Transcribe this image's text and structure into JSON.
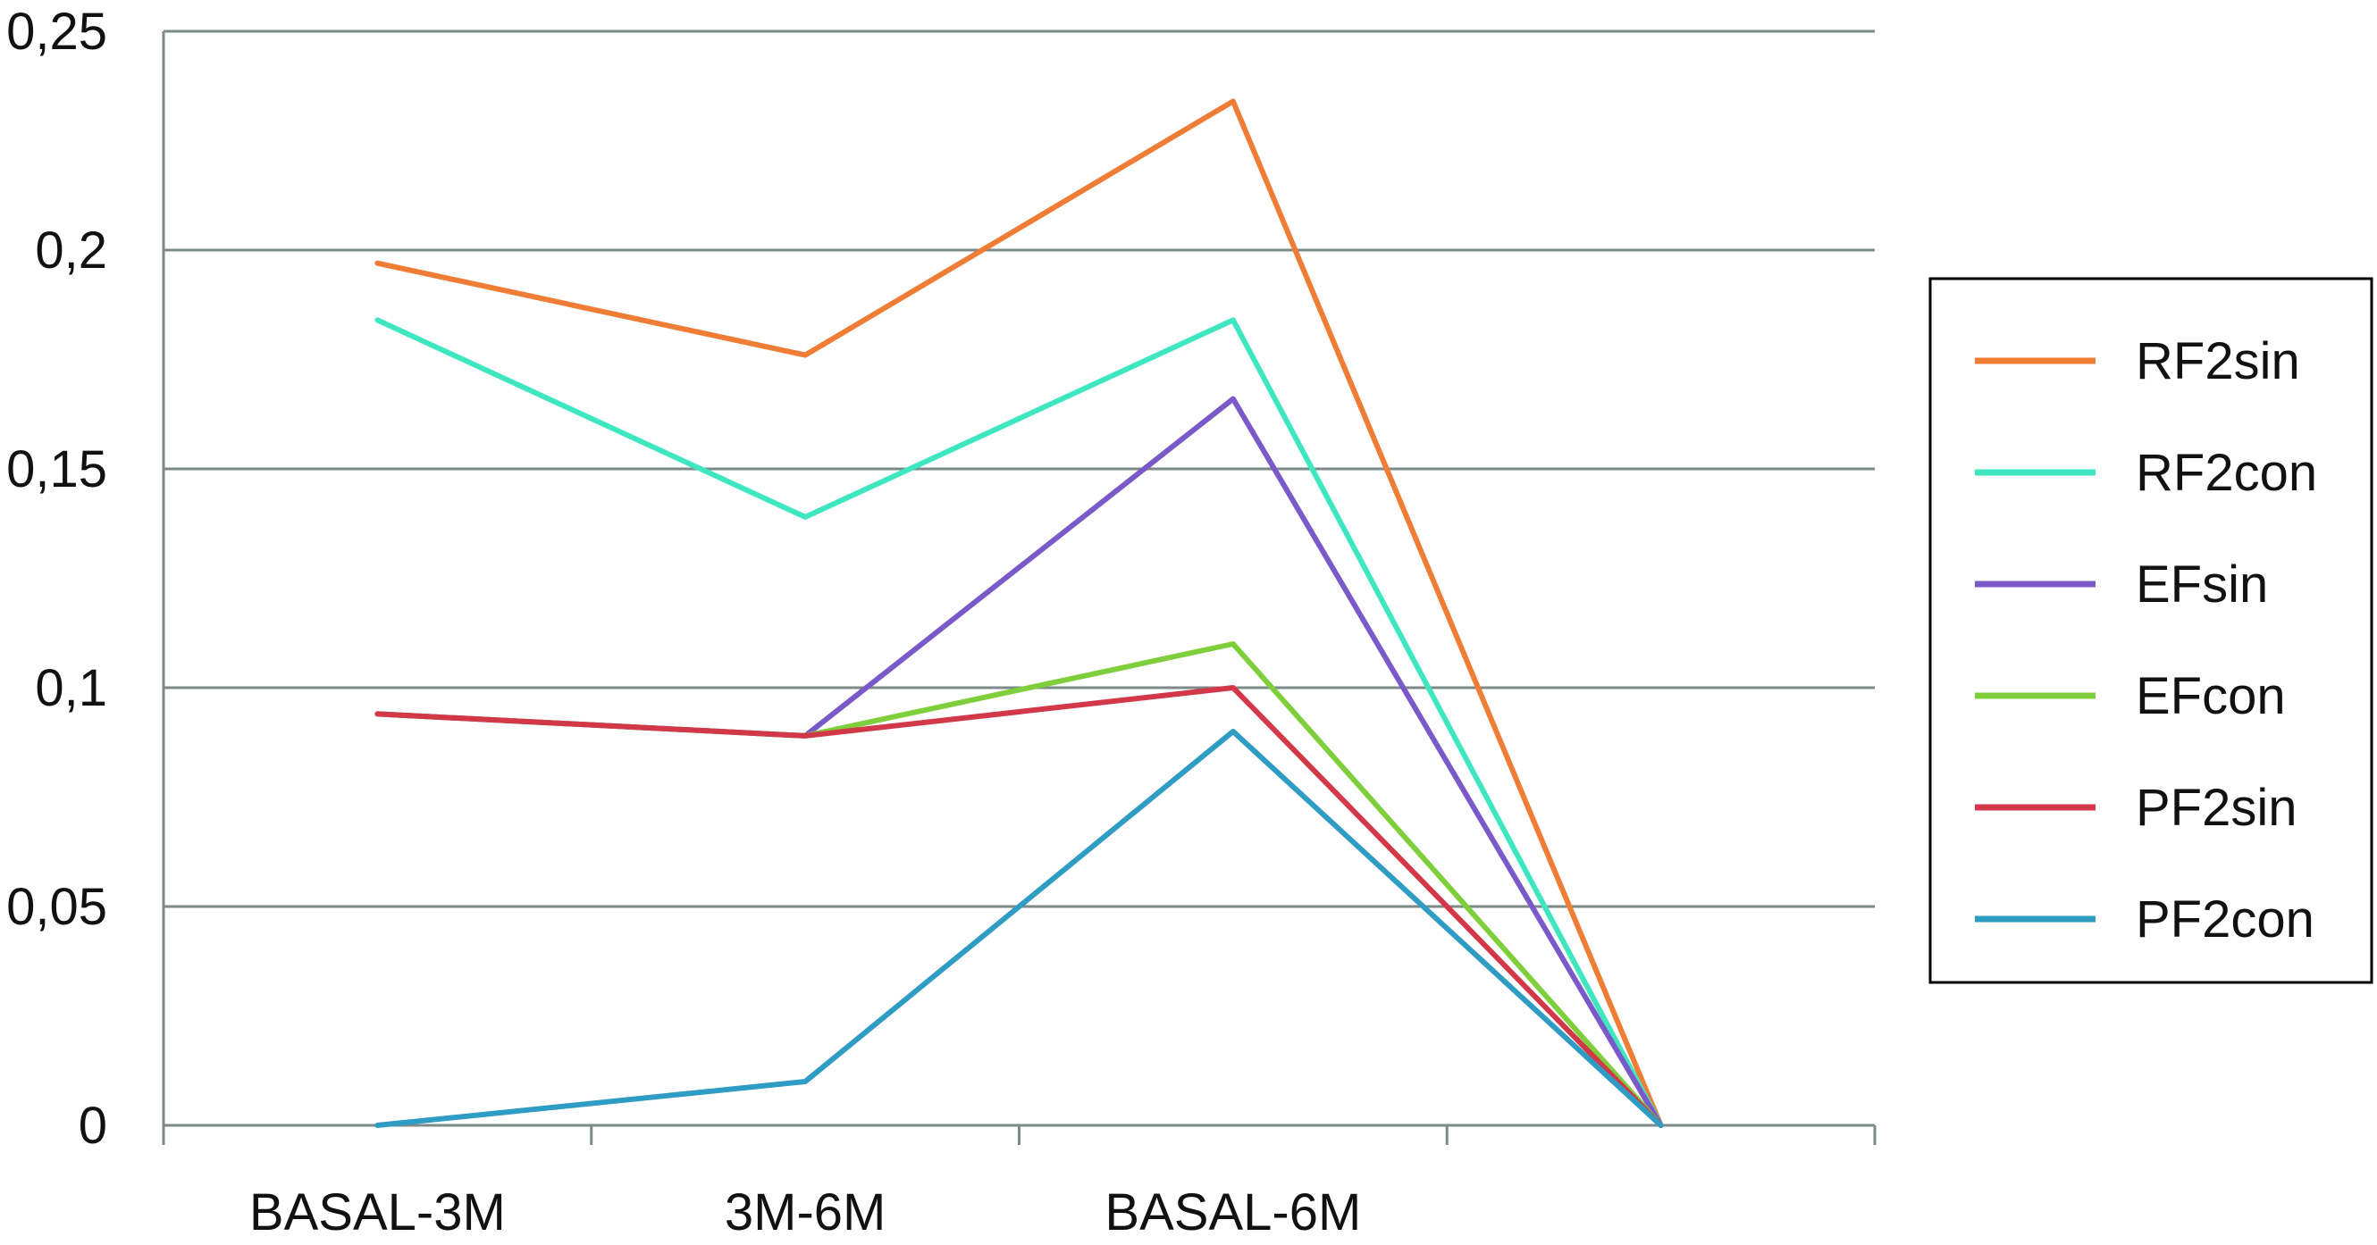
{
  "chart_data": {
    "type": "line",
    "title": "",
    "xlabel": "",
    "ylabel": "",
    "categories": [
      "BASAL-3M",
      "3M-6M",
      "BASAL-6M",
      ""
    ],
    "y_ticks": [
      "0",
      "0,05",
      "0,1",
      "0,15",
      "0,2",
      "0,25"
    ],
    "y_tick_values": [
      0,
      0.05,
      0.1,
      0.15,
      0.2,
      0.25
    ],
    "ylim": [
      0,
      0.25
    ],
    "grid": true,
    "legend_position": "right",
    "colors": {
      "gridline": "#7c8a8a",
      "axis": "#7c8a8a",
      "legend_border": "#000000"
    },
    "series": [
      {
        "name": "RF2sin",
        "color": "#ef7d36",
        "values": [
          0.197,
          0.176,
          0.234,
          0
        ]
      },
      {
        "name": "RF2con",
        "color": "#3fe7c1",
        "values": [
          0.184,
          0.139,
          0.184,
          0
        ]
      },
      {
        "name": "EFsin",
        "color": "#7a5ac8",
        "values": [
          0.094,
          0.089,
          0.166,
          0
        ]
      },
      {
        "name": "EFcon",
        "color": "#7fcf3c",
        "values": [
          0.094,
          0.089,
          0.11,
          0
        ]
      },
      {
        "name": "PF2sin",
        "color": "#d23848",
        "values": [
          0.094,
          0.089,
          0.1,
          0
        ]
      },
      {
        "name": "PF2con",
        "color": "#2f9cc4",
        "values": [
          0.0,
          0.01,
          0.09,
          0
        ]
      }
    ]
  }
}
